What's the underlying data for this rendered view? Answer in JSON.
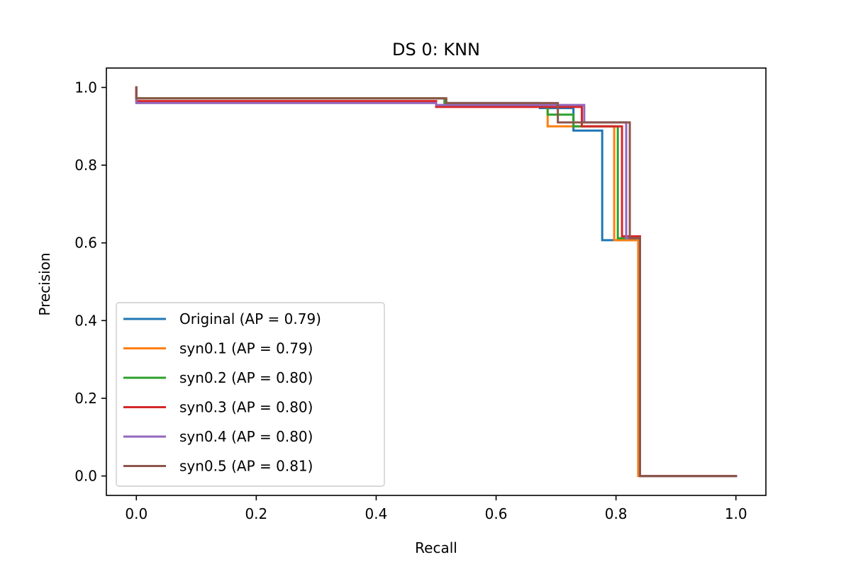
{
  "chart_data": {
    "type": "line",
    "step": "post",
    "title": "DS 0: KNN",
    "xlabel": "Recall",
    "ylabel": "Precision",
    "xlim": [
      -0.05,
      1.05
    ],
    "ylim": [
      -0.05,
      1.05
    ],
    "xticks": [
      0.0,
      0.2,
      0.4,
      0.6,
      0.8,
      1.0
    ],
    "yticks": [
      0.0,
      0.2,
      0.4,
      0.6,
      0.8,
      1.0
    ],
    "xtick_labels": [
      "0.0",
      "0.2",
      "0.4",
      "0.6",
      "0.8",
      "1.0"
    ],
    "ytick_labels": [
      "0.0",
      "0.2",
      "0.4",
      "0.6",
      "0.8",
      "1.0"
    ],
    "grid": false,
    "legend_position": "lower-left",
    "series": [
      {
        "name": "Original (AP = 0.79)",
        "color": "#1f77b4",
        "x": [
          1.0,
          0.84,
          0.777,
          0.729,
          0.673,
          0.514,
          0.0,
          0.0
        ],
        "y": [
          0.0,
          0.607,
          0.889,
          0.947,
          0.96,
          0.972,
          0.972,
          1.0
        ]
      },
      {
        "name": "syn0.1 (AP = 0.79)",
        "color": "#ff7f0e",
        "x": [
          1.0,
          0.837,
          0.797,
          0.745,
          0.686,
          0.514,
          0.0,
          0.0
        ],
        "y": [
          0.0,
          0.607,
          0.9,
          0.9,
          0.955,
          0.972,
          0.972,
          1.0
        ]
      },
      {
        "name": "syn0.2 (AP = 0.80)",
        "color": "#2ca02c",
        "x": [
          1.0,
          0.84,
          0.803,
          0.729,
          0.686,
          0.514,
          0.0,
          0.0
        ],
        "y": [
          0.0,
          0.612,
          0.9,
          0.93,
          0.955,
          0.972,
          0.972,
          1.0
        ]
      },
      {
        "name": "syn0.3 (AP = 0.80)",
        "color": "#d62728",
        "x": [
          1.0,
          0.84,
          0.81,
          0.743,
          0.5,
          0.0,
          0.0
        ],
        "y": [
          0.0,
          0.617,
          0.9,
          0.95,
          0.965,
          0.972,
          1.0
        ]
      },
      {
        "name": "syn0.4 (AP = 0.80)",
        "color": "#9467bd",
        "x": [
          1.0,
          0.84,
          0.817,
          0.747,
          0.5,
          0.0,
          0.0
        ],
        "y": [
          0.0,
          0.612,
          0.91,
          0.955,
          0.96,
          0.972,
          1.0
        ]
      },
      {
        "name": "syn0.5 (AP = 0.81)",
        "color": "#8c564b",
        "x": [
          1.0,
          0.84,
          0.823,
          0.75,
          0.703,
          0.517,
          0.0,
          0.0
        ],
        "y": [
          0.0,
          0.612,
          0.91,
          0.91,
          0.96,
          0.972,
          0.972,
          1.0
        ]
      }
    ]
  }
}
